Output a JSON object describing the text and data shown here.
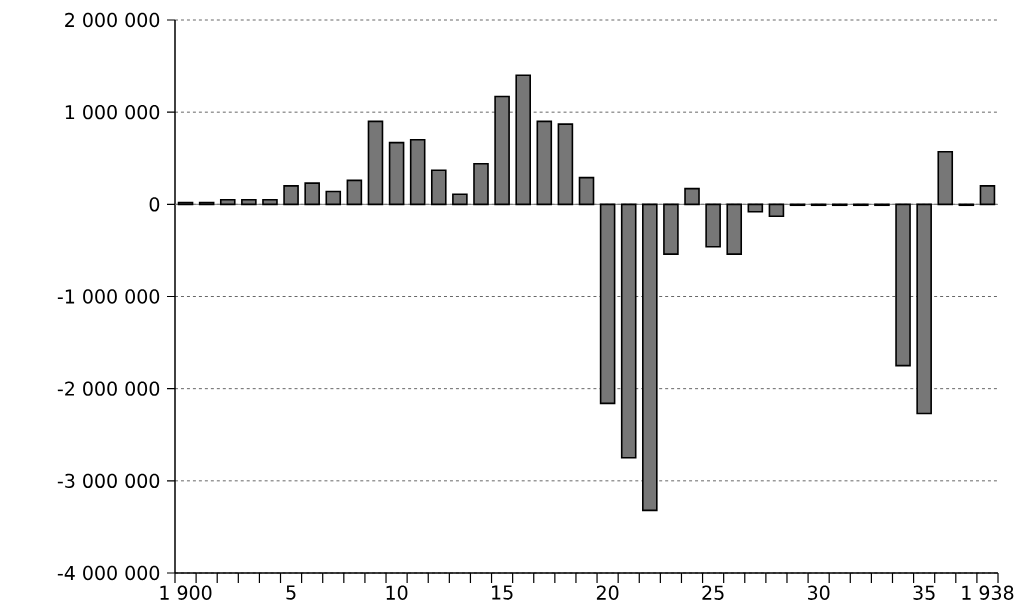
{
  "chart_data": {
    "type": "bar",
    "categories": [
      "1 900",
      null,
      null,
      null,
      null,
      "5",
      null,
      null,
      null,
      null,
      "10",
      null,
      null,
      null,
      null,
      "15",
      null,
      null,
      null,
      null,
      "20",
      null,
      null,
      null,
      null,
      "25",
      null,
      null,
      null,
      null,
      "30",
      null,
      null,
      null,
      null,
      "35",
      null,
      null,
      "1 938"
    ],
    "values": [
      20000,
      20000,
      50000,
      50000,
      50000,
      200000,
      230000,
      140000,
      260000,
      900000,
      670000,
      700000,
      370000,
      110000,
      440000,
      1170000,
      1400000,
      900000,
      870000,
      290000,
      -2160000,
      -2750000,
      -3320000,
      -540000,
      170000,
      -460000,
      -540000,
      -80000,
      -130000,
      -10000,
      -10000,
      -10000,
      -10000,
      -10000,
      -1750000,
      -2270000,
      570000,
      -10000,
      200000
    ],
    "color": "#777777",
    "ylim": [
      -4000000,
      2000000
    ],
    "yticks": [
      {
        "value": -4000000,
        "label": "-4 000 000"
      },
      {
        "value": -3000000,
        "label": "-3 000 000"
      },
      {
        "value": -2000000,
        "label": "-2 000 000"
      },
      {
        "value": -1000000,
        "label": "-1 000 000"
      },
      {
        "value": 0,
        "label": "0"
      },
      {
        "value": 1000000,
        "label": "1 000 000"
      },
      {
        "value": 2000000,
        "label": "2 000 000"
      }
    ],
    "grid": "y"
  }
}
